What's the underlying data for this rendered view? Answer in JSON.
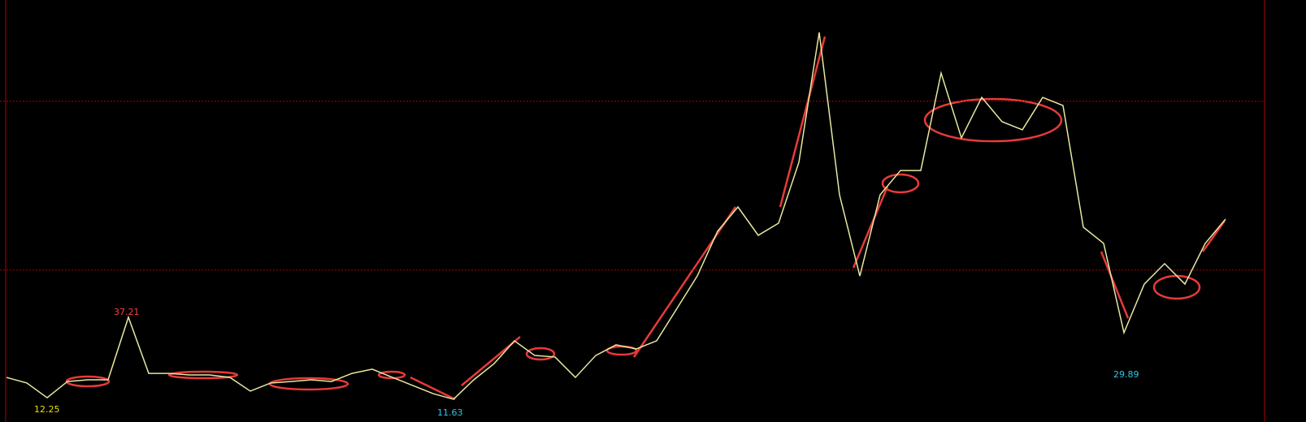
{
  "chart_data": {
    "type": "line",
    "series": [
      {
        "color": "#e8e8a0",
        "values": [
          33.64,
          33.31,
          32.44,
          33.4,
          33.5,
          33.5,
          37.21,
          33.88,
          33.88,
          33.79,
          33.79,
          33.64,
          32.83,
          33.31,
          33.4,
          33.5,
          33.4,
          33.88,
          34.13,
          33.64,
          33.16,
          32.68,
          32.35,
          33.5,
          34.46,
          35.81,
          34.94,
          34.85,
          33.64,
          34.94,
          35.57,
          35.33,
          35.81,
          37.73,
          39.65,
          42.3,
          43.74,
          42.06,
          42.78,
          46.38,
          54.08,
          44.46,
          39.65,
          44.46,
          45.9,
          45.9,
          51.67,
          47.83,
          50.23,
          48.79,
          48.31,
          50.23,
          49.75,
          42.54,
          41.58,
          36.29,
          39.17,
          40.38,
          39.17,
          41.58,
          43.02
        ]
      }
    ],
    "ylim": [
      31,
      56
    ],
    "yticks": [
      40,
      50
    ],
    "grid": true,
    "annotations": [
      "37.21",
      "29.89",
      "12.25",
      "11.63"
    ]
  }
}
